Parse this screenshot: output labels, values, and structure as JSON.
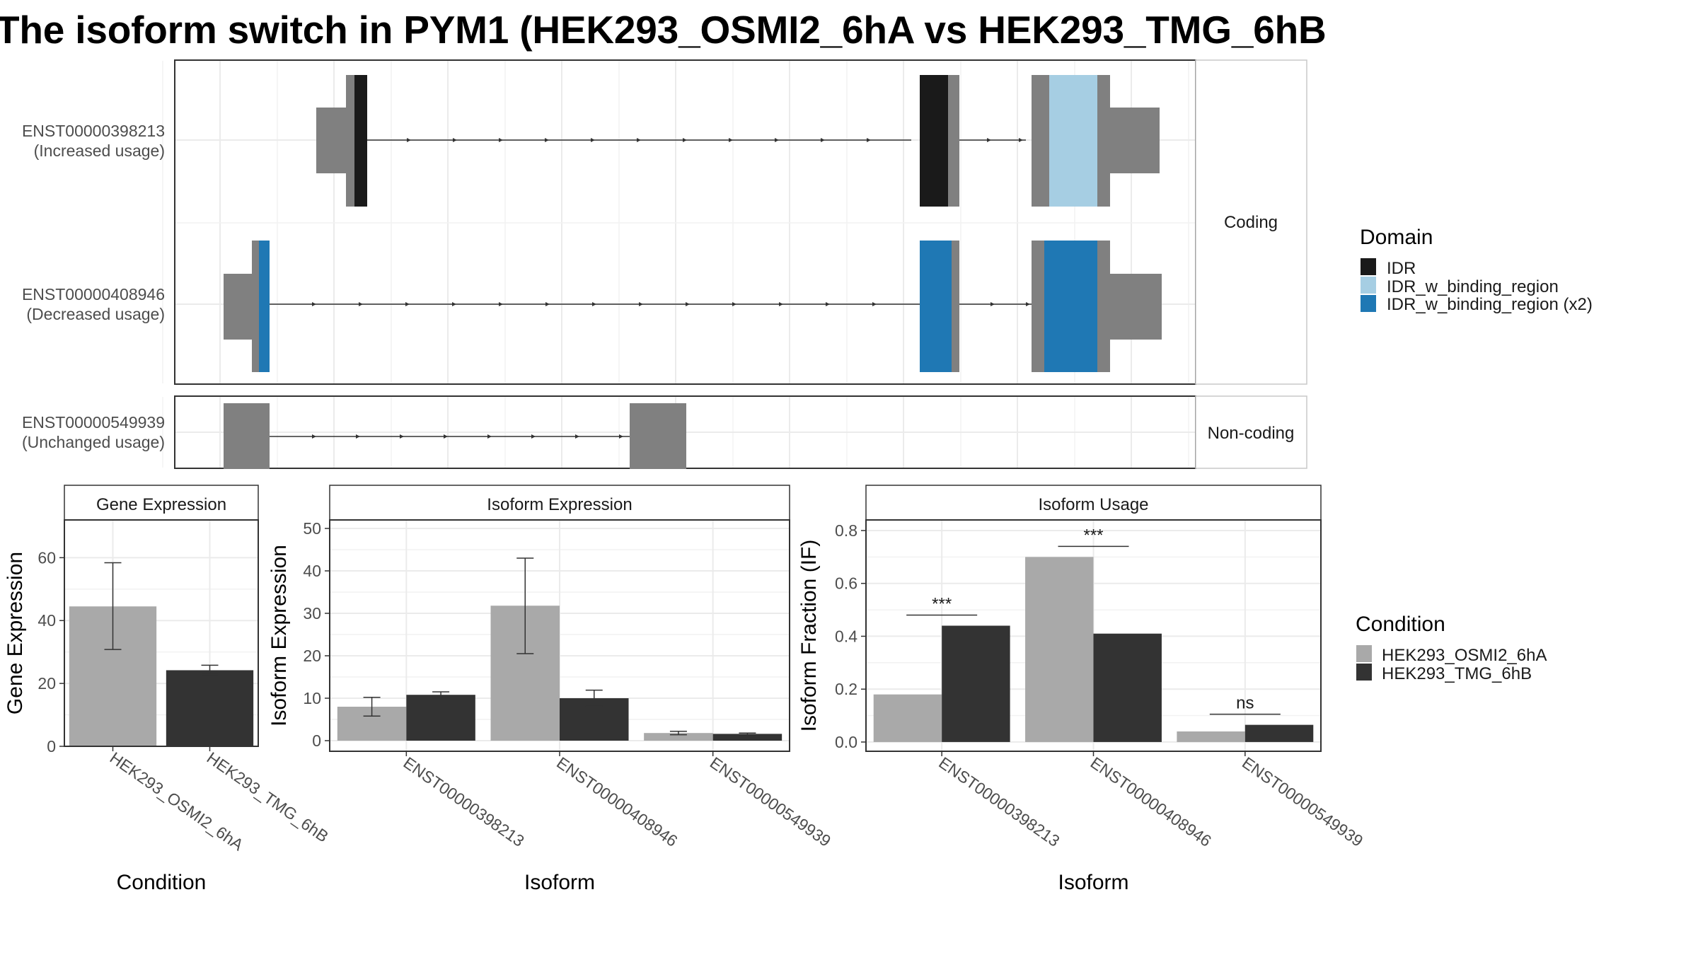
{
  "title": "The isoform switch in PYM1 (HEK293_OSMI2_6hA vs HEK293_TMG_6hB",
  "colors": {
    "gray_exon": "#808080",
    "idr": "#1a1a1a",
    "idr_w_binding_region": "#a6cee3",
    "idr_w_binding_region_x2": "#1f78b4",
    "condition_a": "#a9a9a9",
    "condition_b": "#333333",
    "grid": "#ebebeb"
  },
  "structure": {
    "coding_label": "Coding",
    "noncoding_label": "Non-coding",
    "transcripts": [
      {
        "id": "ENST00000398213",
        "usage": "(Increased usage)",
        "group": "coding",
        "coding_blocks": [
          [
            200,
            225,
            "idr"
          ],
          [
            1225,
            1273,
            "idr"
          ],
          [
            1425,
            1520,
            "idr_w_binding_region"
          ]
        ],
        "exons": [
          [
            35,
            103
          ],
          [
            1225,
            1295
          ],
          [
            1420,
            1640
          ]
        ],
        "cds": [
          [
            73,
            95,
            "left"
          ],
          [
            1248,
            1295,
            "full"
          ],
          [
            1420,
            1527,
            "full"
          ]
        ],
        "idr": [
          [
            88,
            103,
            "IDR"
          ],
          [
            1225,
            1273,
            "IDR"
          ],
          [
            1449,
            1527,
            "IDR_w_binding_region"
          ]
        ]
      },
      {
        "id": "ENST00000408946",
        "usage": "(Decreased usage)",
        "group": "coding"
      },
      {
        "id": "ENST00000549939",
        "usage": "(Unchanged usage)",
        "group": "noncoding"
      }
    ]
  },
  "legends": {
    "domain": {
      "title": "Domain",
      "items": [
        {
          "label": "IDR",
          "color": "#1a1a1a"
        },
        {
          "label": "IDR_w_binding_region",
          "color": "#a6cee3"
        },
        {
          "label": "IDR_w_binding_region (x2)",
          "color": "#1f78b4"
        }
      ]
    },
    "condition": {
      "title": "Condition",
      "items": [
        {
          "label": "HEK293_OSMI2_6hA",
          "color": "#a9a9a9"
        },
        {
          "label": "HEK293_TMG_6hB",
          "color": "#333333"
        }
      ]
    }
  },
  "chart_data": [
    {
      "type": "bar",
      "strip_label": "Gene Expression",
      "xlabel": "Condition",
      "ylabel": "Gene Expression",
      "ylim": [
        0,
        72
      ],
      "yticks": [
        0,
        20,
        40,
        60
      ],
      "categories": [
        "HEK293_OSMI2_6hA",
        "HEK293_TMG_6hB"
      ],
      "values": [
        44.5,
        24.2
      ],
      "error_low": [
        30.8,
        22.8
      ],
      "error_high": [
        58.4,
        25.8
      ]
    },
    {
      "type": "bar",
      "strip_label": "Isoform Expression",
      "xlabel": "Isoform",
      "ylabel": "Isoform Expression",
      "ylim": [
        -2.5,
        52
      ],
      "yticks": [
        0,
        10,
        20,
        30,
        40,
        50
      ],
      "categories": [
        "ENST00000398213",
        "ENST00000408946",
        "ENST00000549939"
      ],
      "series": [
        {
          "name": "HEK293_OSMI2_6hA",
          "values": [
            8.0,
            31.8,
            1.8
          ],
          "error_low": [
            5.8,
            20.5,
            1.4
          ],
          "error_high": [
            10.2,
            43.0,
            2.2
          ]
        },
        {
          "name": "HEK293_TMG_6hB",
          "values": [
            10.8,
            10.0,
            1.6
          ],
          "error_low": [
            10.0,
            8.1,
            1.4
          ],
          "error_high": [
            11.5,
            11.9,
            1.8
          ]
        }
      ]
    },
    {
      "type": "bar",
      "strip_label": "Isoform Usage",
      "xlabel": "Isoform",
      "ylabel": "Isoform Fraction (IF)",
      "ylim": [
        -0.035,
        0.84
      ],
      "yticks": [
        "0.0",
        "0.2",
        "0.4",
        "0.6",
        "0.8"
      ],
      "categories": [
        "ENST00000398213",
        "ENST00000408946",
        "ENST00000549939"
      ],
      "series": [
        {
          "name": "HEK293_OSMI2_6hA",
          "values": [
            0.18,
            0.7,
            0.04
          ]
        },
        {
          "name": "HEK293_TMG_6hB",
          "values": [
            0.44,
            0.41,
            0.065
          ]
        }
      ],
      "significance": [
        "***",
        "***",
        "ns"
      ],
      "significance_y": [
        0.48,
        0.74,
        0.105
      ]
    }
  ]
}
